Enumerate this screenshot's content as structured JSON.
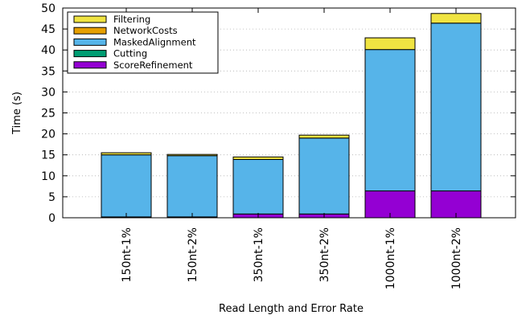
{
  "chart_data": {
    "type": "bar",
    "stacked": true,
    "xlabel": "Read Length and Error Rate",
    "ylabel": "Time (s)",
    "ylim": [
      0,
      50
    ],
    "yticks": [
      0,
      5,
      10,
      15,
      20,
      25,
      30,
      35,
      40,
      45,
      50
    ],
    "grid": true,
    "legend_position": "top-left",
    "categories": [
      "150nt-1%",
      "150nt-2%",
      "350nt-1%",
      "350nt-2%",
      "1000nt-1%",
      "1000nt-2%"
    ],
    "series": [
      {
        "name": "ScoreRefinement",
        "color": "#9400d3",
        "values": [
          0.2,
          0.2,
          0.9,
          0.9,
          6.4,
          6.4
        ]
      },
      {
        "name": "Cutting",
        "color": "#009e73",
        "values": [
          0.0,
          0.0,
          0.0,
          0.0,
          0.0,
          0.0
        ]
      },
      {
        "name": "MaskedAlignment",
        "color": "#56b4e9",
        "values": [
          14.8,
          14.6,
          13.0,
          18.1,
          33.7,
          40.0
        ]
      },
      {
        "name": "NetworkCosts",
        "color": "#e69f00",
        "values": [
          0.0,
          0.0,
          0.0,
          0.0,
          0.0,
          0.0
        ]
      },
      {
        "name": "Filtering",
        "color": "#f0e442",
        "values": [
          0.5,
          0.3,
          0.6,
          0.7,
          2.8,
          2.3
        ]
      }
    ],
    "legend_order": [
      "Filtering",
      "NetworkCosts",
      "MaskedAlignment",
      "Cutting",
      "ScoreRefinement"
    ]
  }
}
